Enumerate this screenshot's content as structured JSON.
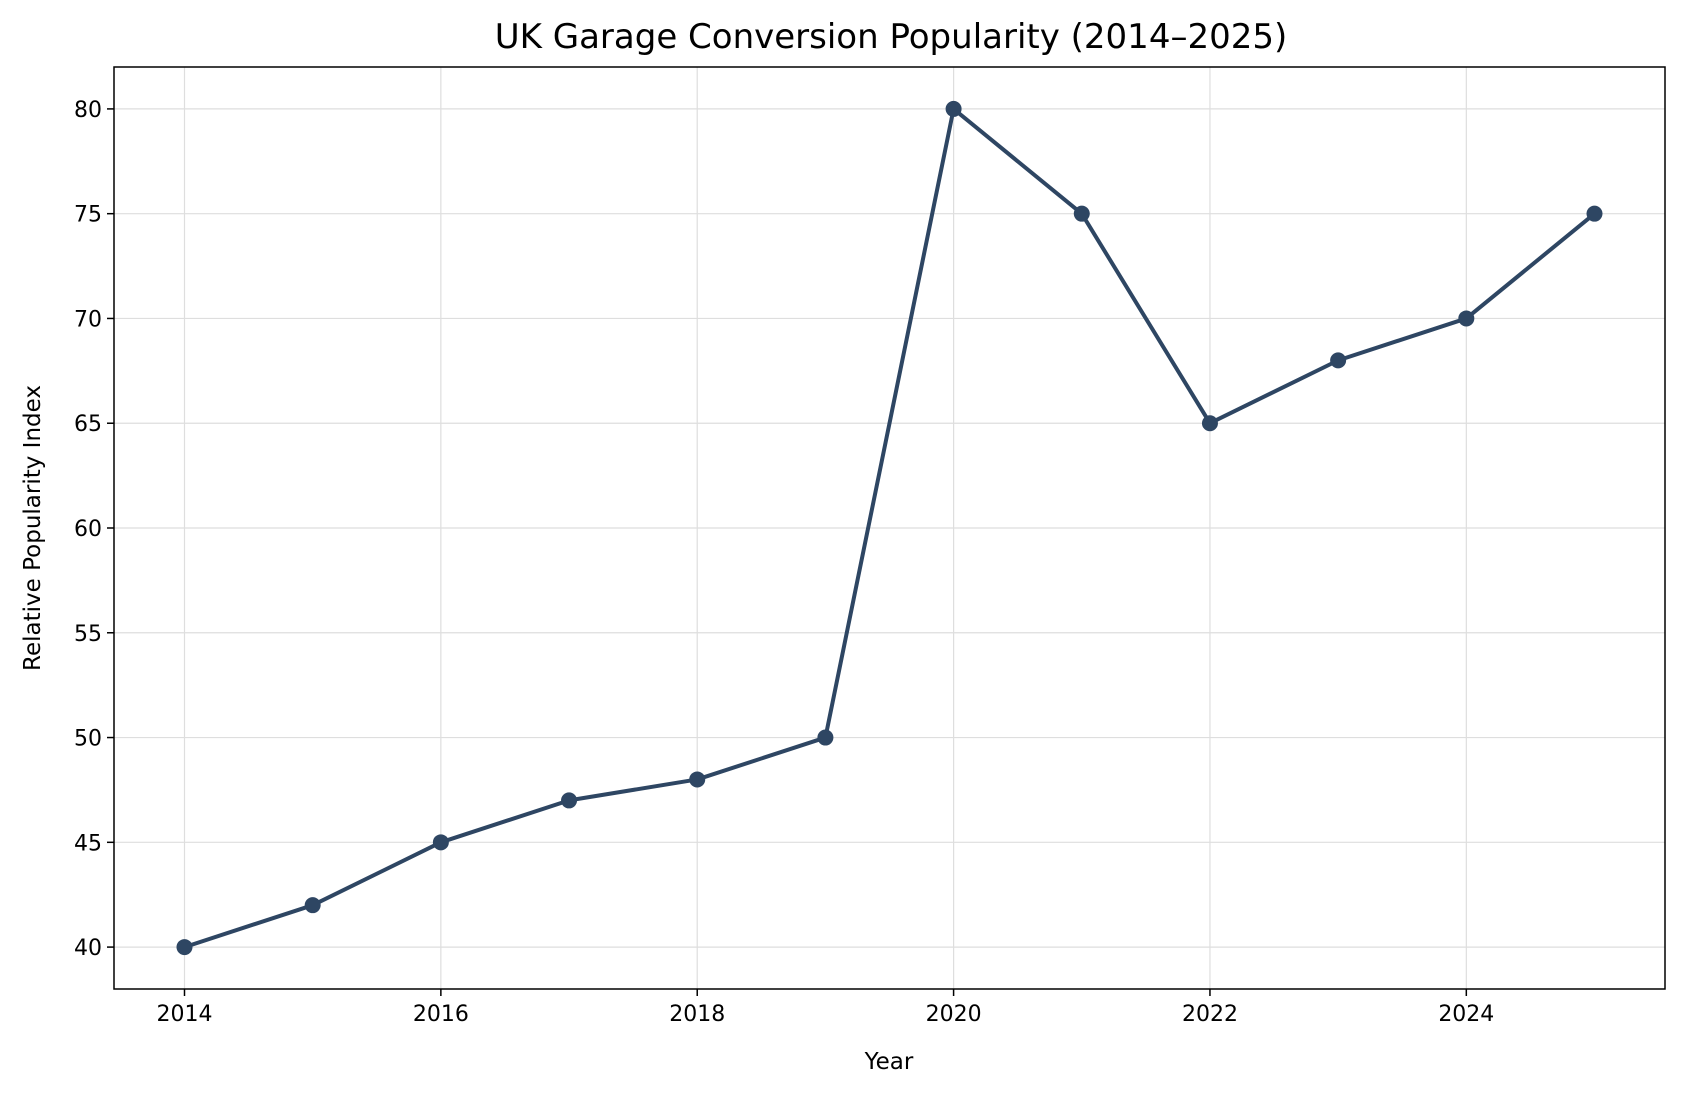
{
  "chart_data": {
    "type": "line",
    "title": "UK Garage Conversion Popularity (2014–2025)",
    "xlabel": "Year",
    "ylabel": "Relative Popularity Index",
    "x": [
      2014,
      2015,
      2016,
      2017,
      2018,
      2019,
      2020,
      2021,
      2022,
      2023,
      2024,
      2025
    ],
    "series": [
      {
        "values": [
          40,
          42,
          45,
          47,
          48,
          50,
          80,
          75,
          65,
          68,
          70,
          75
        ],
        "color": "#2e4663",
        "marker": "circle"
      }
    ],
    "xticks": [
      "2014",
      "2016",
      "2018",
      "2020",
      "2022",
      "2024"
    ],
    "yticks": [
      "40",
      "45",
      "50",
      "55",
      "60",
      "65",
      "70",
      "75",
      "80"
    ],
    "xlim": [
      2013.45,
      2025.55
    ],
    "ylim": [
      38,
      82
    ],
    "grid": true
  }
}
